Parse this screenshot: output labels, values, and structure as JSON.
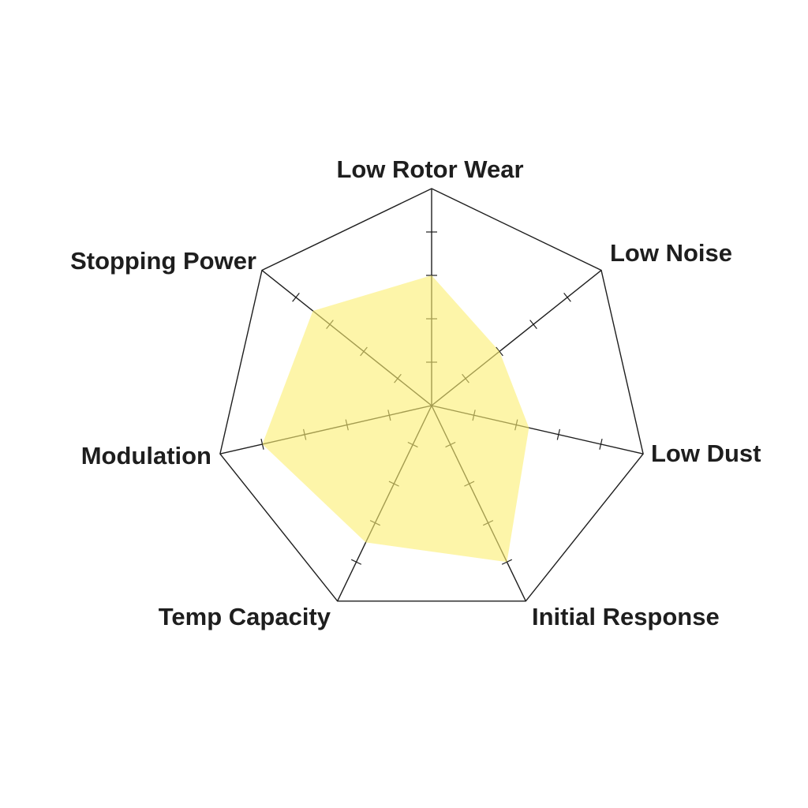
{
  "chart_data": {
    "type": "radar",
    "axes": [
      "Low Rotor Wear",
      "Low Noise",
      "Low Dust",
      "Initial Response",
      "Temp Capacity",
      "Modulation",
      "Stopping Power"
    ],
    "values": [
      3,
      2,
      2.3,
      4,
      3.5,
      4,
      3.5
    ],
    "range": [
      0,
      5
    ],
    "tick_count": 5,
    "grid": "outer polygon with tick marks on spokes",
    "fill_color": "#fbef70",
    "line_color": "#1e1e1e"
  }
}
